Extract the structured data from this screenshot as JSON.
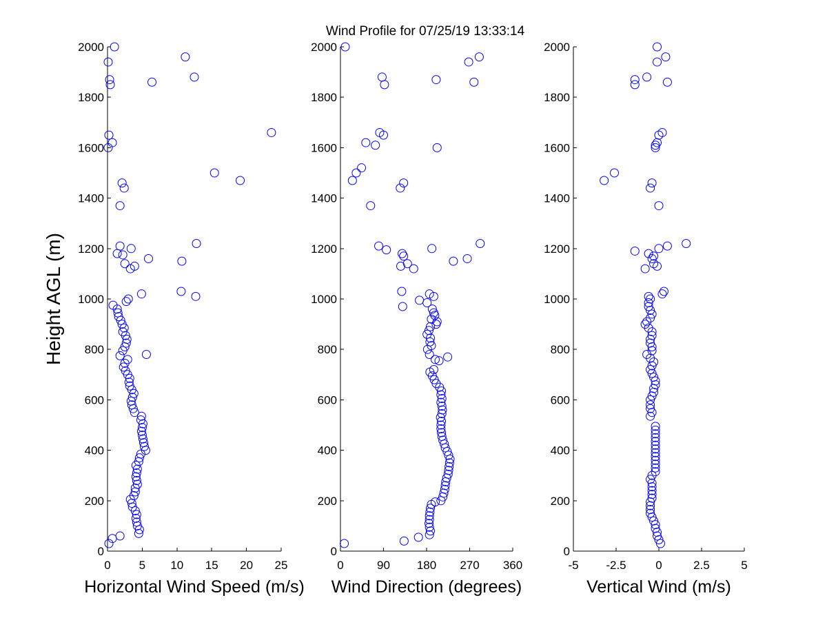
{
  "chart_data": {
    "title": "Wind Profile for  07/25/19 13:33:14",
    "ylabel": "Height AGL (m)",
    "marker_color": "#0000ff",
    "panels": [
      {
        "type": "scatter",
        "xlabel": "Horizontal Wind Speed (m/s)",
        "xlim": [
          0,
          25
        ],
        "xticks": [
          0,
          5,
          10,
          15,
          20,
          25
        ],
        "xtick_labels": [
          "0",
          "5",
          "10",
          "15",
          "20",
          "25"
        ],
        "ylim": [
          0,
          2000
        ],
        "yticks": [
          0,
          200,
          400,
          600,
          800,
          1000,
          1200,
          1400,
          1600,
          1800,
          2000
        ],
        "points": [
          [
            0.2,
            30
          ],
          [
            0.7,
            50
          ],
          [
            1.8,
            60
          ],
          [
            4.5,
            70
          ],
          [
            4.6,
            85
          ],
          [
            4.3,
            100
          ],
          [
            4.2,
            115
          ],
          [
            4.1,
            130
          ],
          [
            4.2,
            145
          ],
          [
            4.0,
            160
          ],
          [
            3.6,
            175
          ],
          [
            3.5,
            190
          ],
          [
            3.3,
            205
          ],
          [
            3.8,
            220
          ],
          [
            4.0,
            235
          ],
          [
            4.0,
            250
          ],
          [
            4.3,
            265
          ],
          [
            4.2,
            280
          ],
          [
            4.1,
            295
          ],
          [
            4.2,
            310
          ],
          [
            4.3,
            325
          ],
          [
            4.1,
            340
          ],
          [
            4.5,
            355
          ],
          [
            4.6,
            370
          ],
          [
            4.8,
            385
          ],
          [
            5.5,
            400
          ],
          [
            5.3,
            415
          ],
          [
            5.2,
            430
          ],
          [
            5.1,
            445
          ],
          [
            5.0,
            460
          ],
          [
            4.9,
            475
          ],
          [
            5.0,
            490
          ],
          [
            5.1,
            505
          ],
          [
            4.8,
            520
          ],
          [
            4.9,
            535
          ],
          [
            3.9,
            550
          ],
          [
            3.7,
            565
          ],
          [
            3.5,
            580
          ],
          [
            3.4,
            595
          ],
          [
            3.6,
            610
          ],
          [
            3.8,
            625
          ],
          [
            3.5,
            640
          ],
          [
            3.2,
            655
          ],
          [
            3.1,
            670
          ],
          [
            3.2,
            685
          ],
          [
            2.9,
            700
          ],
          [
            2.6,
            715
          ],
          [
            2.3,
            730
          ],
          [
            2.5,
            745
          ],
          [
            2.9,
            760
          ],
          [
            1.8,
            775
          ],
          [
            5.6,
            780
          ],
          [
            2.2,
            795
          ],
          [
            2.5,
            810
          ],
          [
            2.7,
            825
          ],
          [
            2.8,
            840
          ],
          [
            2.6,
            855
          ],
          [
            2.2,
            870
          ],
          [
            2.4,
            885
          ],
          [
            2.1,
            900
          ],
          [
            1.9,
            915
          ],
          [
            1.6,
            930
          ],
          [
            1.5,
            945
          ],
          [
            1.4,
            960
          ],
          [
            0.8,
            975
          ],
          [
            2.7,
            990
          ],
          [
            3.0,
            1000
          ],
          [
            4.9,
            1020
          ],
          [
            10.6,
            1030
          ],
          [
            12.7,
            1010
          ],
          [
            3.3,
            1120
          ],
          [
            2.5,
            1140
          ],
          [
            3.9,
            1130
          ],
          [
            10.7,
            1150
          ],
          [
            5.9,
            1160
          ],
          [
            2.2,
            1175
          ],
          [
            1.4,
            1180
          ],
          [
            3.4,
            1200
          ],
          [
            1.8,
            1210
          ],
          [
            12.8,
            1220
          ],
          [
            1.8,
            1370
          ],
          [
            2.4,
            1440
          ],
          [
            2.1,
            1460
          ],
          [
            19.1,
            1470
          ],
          [
            15.4,
            1500
          ],
          [
            0.1,
            1600
          ],
          [
            0.7,
            1620
          ],
          [
            0.2,
            1650
          ],
          [
            23.6,
            1660
          ],
          [
            0.4,
            1850
          ],
          [
            0.3,
            1870
          ],
          [
            6.4,
            1860
          ],
          [
            12.5,
            1880
          ],
          [
            0.1,
            1940
          ],
          [
            11.2,
            1960
          ],
          [
            1.0,
            2000
          ]
        ]
      },
      {
        "type": "scatter",
        "xlabel": "Wind Direction (degrees)",
        "xlim": [
          0,
          360
        ],
        "xticks": [
          0,
          90,
          180,
          270,
          360
        ],
        "xtick_labels": [
          "0",
          "90",
          "180",
          "270",
          "360"
        ],
        "ylim": [
          0,
          2000
        ],
        "yticks": [
          0,
          200,
          400,
          600,
          800,
          1000,
          1200,
          1400,
          1600,
          1800,
          2000
        ],
        "points": [
          [
            8,
            30
          ],
          [
            133,
            40
          ],
          [
            163,
            55
          ],
          [
            186,
            65
          ],
          [
            188,
            80
          ],
          [
            186,
            95
          ],
          [
            185,
            110
          ],
          [
            186,
            125
          ],
          [
            186,
            140
          ],
          [
            187,
            155
          ],
          [
            188,
            170
          ],
          [
            190,
            185
          ],
          [
            198,
            195
          ],
          [
            210,
            200
          ],
          [
            214,
            215
          ],
          [
            216,
            230
          ],
          [
            218,
            245
          ],
          [
            219,
            260
          ],
          [
            220,
            275
          ],
          [
            222,
            290
          ],
          [
            225,
            305
          ],
          [
            226,
            320
          ],
          [
            227,
            335
          ],
          [
            228,
            350
          ],
          [
            229,
            365
          ],
          [
            226,
            380
          ],
          [
            223,
            395
          ],
          [
            219,
            410
          ],
          [
            217,
            425
          ],
          [
            214,
            440
          ],
          [
            212,
            455
          ],
          [
            211,
            470
          ],
          [
            210,
            485
          ],
          [
            210,
            500
          ],
          [
            211,
            515
          ],
          [
            209,
            530
          ],
          [
            212,
            545
          ],
          [
            213,
            560
          ],
          [
            212,
            575
          ],
          [
            210,
            590
          ],
          [
            212,
            605
          ],
          [
            210,
            620
          ],
          [
            211,
            635
          ],
          [
            207,
            650
          ],
          [
            200,
            665
          ],
          [
            196,
            680
          ],
          [
            192,
            695
          ],
          [
            187,
            710
          ],
          [
            195,
            720
          ],
          [
            206,
            755
          ],
          [
            198,
            760
          ],
          [
            224,
            770
          ],
          [
            186,
            780
          ],
          [
            182,
            800
          ],
          [
            190,
            815
          ],
          [
            187,
            830
          ],
          [
            188,
            845
          ],
          [
            181,
            860
          ],
          [
            185,
            875
          ],
          [
            188,
            890
          ],
          [
            200,
            900
          ],
          [
            202,
            910
          ],
          [
            190,
            920
          ],
          [
            197,
            935
          ],
          [
            195,
            945
          ],
          [
            192,
            960
          ],
          [
            130,
            970
          ],
          [
            165,
            995
          ],
          [
            128,
            1030
          ],
          [
            181,
            985
          ],
          [
            186,
            1020
          ],
          [
            195,
            1010
          ],
          [
            126,
            1130
          ],
          [
            140,
            1140
          ],
          [
            153,
            1120
          ],
          [
            236,
            1150
          ],
          [
            265,
            1160
          ],
          [
            132,
            1170
          ],
          [
            129,
            1180
          ],
          [
            191,
            1200
          ],
          [
            80,
            1210
          ],
          [
            96,
            1195
          ],
          [
            292,
            1220
          ],
          [
            63,
            1370
          ],
          [
            125,
            1440
          ],
          [
            132,
            1460
          ],
          [
            25,
            1470
          ],
          [
            33,
            1500
          ],
          [
            44,
            1520
          ],
          [
            73,
            1610
          ],
          [
            53,
            1620
          ],
          [
            202,
            1600
          ],
          [
            90,
            1650
          ],
          [
            82,
            1660
          ],
          [
            200,
            1870
          ],
          [
            87,
            1880
          ],
          [
            92,
            1850
          ],
          [
            279,
            1860
          ],
          [
            268,
            1940
          ],
          [
            290,
            1960
          ],
          [
            10,
            2000
          ]
        ]
      },
      {
        "type": "scatter",
        "xlabel": "Vertical Wind (m/s)",
        "xlim": [
          -5,
          5
        ],
        "xticks": [
          -5,
          -2.5,
          0,
          2.5,
          5
        ],
        "xtick_labels": [
          "-5",
          "-2.5",
          "0",
          "2.5",
          "5"
        ],
        "ylim": [
          0,
          2000
        ],
        "yticks": [
          0,
          200,
          400,
          600,
          800,
          1000,
          1200,
          1400,
          1600,
          1800,
          2000
        ],
        "points": [
          [
            0.1,
            30
          ],
          [
            0.0,
            45
          ],
          [
            -0.1,
            60
          ],
          [
            -0.1,
            75
          ],
          [
            -0.2,
            90
          ],
          [
            -0.2,
            105
          ],
          [
            -0.3,
            120
          ],
          [
            -0.4,
            135
          ],
          [
            -0.5,
            150
          ],
          [
            -0.5,
            165
          ],
          [
            -0.5,
            180
          ],
          [
            -0.5,
            195
          ],
          [
            -0.4,
            210
          ],
          [
            -0.4,
            225
          ],
          [
            -0.4,
            240
          ],
          [
            -0.4,
            255
          ],
          [
            -0.4,
            270
          ],
          [
            -0.5,
            285
          ],
          [
            -0.4,
            300
          ],
          [
            -0.2,
            315
          ],
          [
            -0.2,
            330
          ],
          [
            -0.2,
            345
          ],
          [
            -0.2,
            360
          ],
          [
            -0.2,
            375
          ],
          [
            -0.2,
            390
          ],
          [
            -0.2,
            405
          ],
          [
            -0.2,
            420
          ],
          [
            -0.2,
            435
          ],
          [
            -0.2,
            450
          ],
          [
            -0.2,
            465
          ],
          [
            -0.2,
            480
          ],
          [
            -0.2,
            495
          ],
          [
            -0.5,
            535
          ],
          [
            -0.4,
            550
          ],
          [
            -0.5,
            565
          ],
          [
            -0.5,
            580
          ],
          [
            -0.5,
            600
          ],
          [
            -0.4,
            615
          ],
          [
            -0.3,
            630
          ],
          [
            -0.3,
            645
          ],
          [
            -0.2,
            660
          ],
          [
            -0.2,
            675
          ],
          [
            -0.3,
            690
          ],
          [
            -0.4,
            705
          ],
          [
            -0.5,
            720
          ],
          [
            -0.4,
            735
          ],
          [
            -0.3,
            750
          ],
          [
            -0.5,
            765
          ],
          [
            -0.7,
            780
          ],
          [
            -0.4,
            795
          ],
          [
            -0.4,
            810
          ],
          [
            -0.5,
            825
          ],
          [
            -0.5,
            840
          ],
          [
            -0.4,
            855
          ],
          [
            -0.4,
            870
          ],
          [
            -0.6,
            885
          ],
          [
            -0.8,
            900
          ],
          [
            -0.7,
            910
          ],
          [
            -0.5,
            925
          ],
          [
            -0.4,
            940
          ],
          [
            -0.5,
            955
          ],
          [
            -0.6,
            970
          ],
          [
            -0.6,
            985
          ],
          [
            -0.5,
            1000
          ],
          [
            -0.6,
            1010
          ],
          [
            0.2,
            1020
          ],
          [
            0.3,
            1030
          ],
          [
            -0.8,
            1120
          ],
          [
            -0.3,
            1140
          ],
          [
            -0.1,
            1130
          ],
          [
            -0.4,
            1160
          ],
          [
            -0.6,
            1180
          ],
          [
            -1.4,
            1190
          ],
          [
            -0.3,
            1170
          ],
          [
            0.0,
            1200
          ],
          [
            0.5,
            1210
          ],
          [
            1.6,
            1220
          ],
          [
            0.0,
            1370
          ],
          [
            -0.5,
            1440
          ],
          [
            -0.4,
            1460
          ],
          [
            -3.2,
            1470
          ],
          [
            -2.6,
            1500
          ],
          [
            -0.2,
            1600
          ],
          [
            -0.2,
            1610
          ],
          [
            -0.1,
            1620
          ],
          [
            0.0,
            1650
          ],
          [
            0.2,
            1660
          ],
          [
            -1.4,
            1870
          ],
          [
            -1.4,
            1850
          ],
          [
            -0.7,
            1880
          ],
          [
            0.5,
            1860
          ],
          [
            -0.1,
            1940
          ],
          [
            0.4,
            1960
          ],
          [
            -0.1,
            2000
          ]
        ]
      }
    ]
  }
}
